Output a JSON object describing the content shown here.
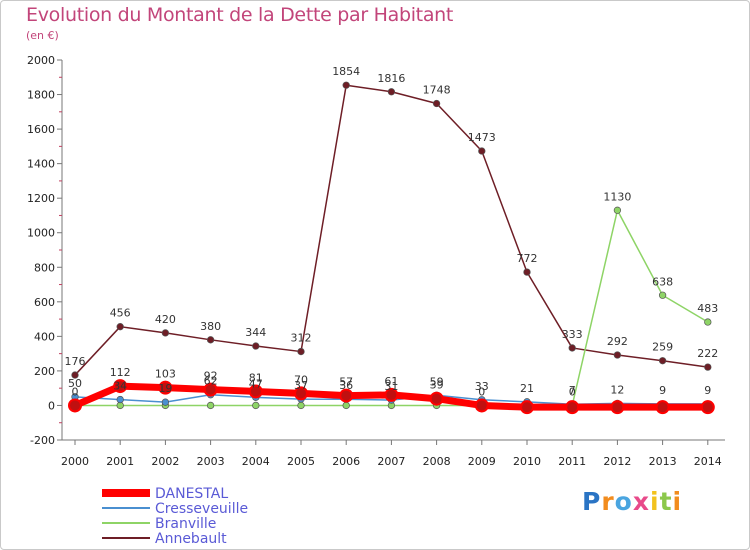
{
  "chart_data": {
    "type": "line",
    "title": "Evolution du Montant de la Dette par Habitant",
    "subtitle": "(en €)",
    "x": [
      "2000",
      "2001",
      "2002",
      "2003",
      "2004",
      "2005",
      "2006",
      "2007",
      "2008",
      "2009",
      "2010",
      "2011",
      "2012",
      "2013",
      "2014"
    ],
    "ylim": [
      -200,
      2000
    ],
    "yticks": [
      "-200",
      "0",
      "200",
      "400",
      "600",
      "800",
      "1000",
      "1200",
      "1400",
      "1600",
      "1800",
      "2000"
    ],
    "grid": false,
    "legend_position": "bottom-left",
    "series": [
      {
        "name": "DANESTAL",
        "color": "#ff0000",
        "values": [
          0,
          112,
          103,
          92,
          81,
          70,
          57,
          61,
          39,
          0,
          -10,
          -10,
          -10,
          -10,
          -10
        ],
        "labels": [
          "0",
          "112",
          "103",
          "92",
          "81",
          "70",
          "57",
          "61",
          "39",
          "0",
          "",
          "",
          "",
          "",
          ""
        ]
      },
      {
        "name": "Cresseveuille",
        "color": "#4a8fd0",
        "values": [
          50,
          34,
          19,
          62,
          47,
          37,
          36,
          31,
          59,
          33,
          21,
          7,
          12,
          9,
          9
        ],
        "labels": [
          "50",
          "34",
          "19",
          "62",
          "47",
          "37",
          "36",
          "31",
          "59",
          "33",
          "21",
          "7",
          "12",
          "9",
          "9"
        ]
      },
      {
        "name": "Branville",
        "color": "#8ed466",
        "values": [
          0,
          0,
          0,
          0,
          0,
          0,
          0,
          0,
          0,
          0,
          0,
          0,
          1130,
          638,
          483
        ],
        "labels": [
          "",
          "",
          "",
          "",
          "",
          "",
          "",
          "",
          "",
          "",
          "",
          "0",
          "1130",
          "638",
          "483"
        ]
      },
      {
        "name": "Annebault",
        "color": "#6e1e26",
        "values": [
          176,
          456,
          420,
          380,
          344,
          312,
          1854,
          1816,
          1748,
          1473,
          772,
          333,
          292,
          259,
          222
        ],
        "labels": [
          "176",
          "456",
          "420",
          "380",
          "344",
          "312",
          "1854",
          "1816",
          "1748",
          "1473",
          "772",
          "333",
          "292",
          "259",
          "222"
        ]
      }
    ]
  },
  "logo": {
    "letters": [
      "P",
      "r",
      "o",
      "x",
      "i",
      "t",
      "i"
    ],
    "colors": [
      "#2a74c4",
      "#f28c1e",
      "#4aa5e0",
      "#e84a8a",
      "#f2c21e",
      "#8cc84b",
      "#f28c1e"
    ]
  }
}
